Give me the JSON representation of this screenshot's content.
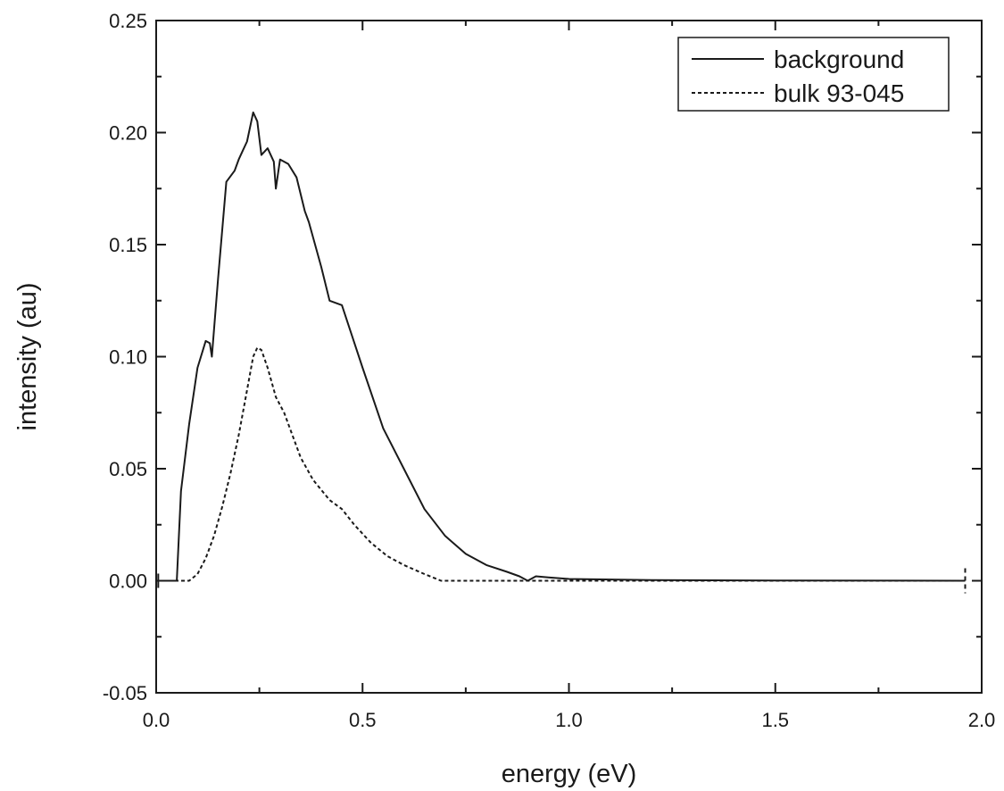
{
  "chart_data": {
    "type": "line",
    "title": "",
    "xlabel": "energy (eV)",
    "ylabel": "intensity (au)",
    "xlim": [
      0.0,
      2.0
    ],
    "ylim": [
      -0.05,
      0.25
    ],
    "x_ticks": [
      "0.0",
      "0.5",
      "1.0",
      "1.5",
      "2.0"
    ],
    "y_ticks": [
      "-0.05",
      "0.00",
      "0.05",
      "0.10",
      "0.15",
      "0.20",
      "0.25"
    ],
    "grid": false,
    "legend_position": "top-right",
    "series": [
      {
        "name": "background",
        "line_style": "solid",
        "color": "#1a1a1a",
        "points": [
          [
            0.0,
            0.0
          ],
          [
            0.05,
            0.0
          ],
          [
            0.06,
            0.04
          ],
          [
            0.08,
            0.07
          ],
          [
            0.1,
            0.095
          ],
          [
            0.12,
            0.107
          ],
          [
            0.13,
            0.106
          ],
          [
            0.135,
            0.1
          ],
          [
            0.15,
            0.135
          ],
          [
            0.17,
            0.178
          ],
          [
            0.19,
            0.183
          ],
          [
            0.2,
            0.188
          ],
          [
            0.21,
            0.192
          ],
          [
            0.22,
            0.196
          ],
          [
            0.235,
            0.209
          ],
          [
            0.245,
            0.205
          ],
          [
            0.255,
            0.19
          ],
          [
            0.27,
            0.193
          ],
          [
            0.285,
            0.187
          ],
          [
            0.29,
            0.175
          ],
          [
            0.3,
            0.188
          ],
          [
            0.32,
            0.186
          ],
          [
            0.34,
            0.18
          ],
          [
            0.36,
            0.165
          ],
          [
            0.37,
            0.16
          ],
          [
            0.4,
            0.14
          ],
          [
            0.42,
            0.125
          ],
          [
            0.45,
            0.123
          ],
          [
            0.5,
            0.095
          ],
          [
            0.55,
            0.068
          ],
          [
            0.6,
            0.05
          ],
          [
            0.65,
            0.032
          ],
          [
            0.7,
            0.02
          ],
          [
            0.75,
            0.012
          ],
          [
            0.8,
            0.007
          ],
          [
            0.85,
            0.004
          ],
          [
            0.88,
            0.002
          ],
          [
            0.9,
            0.0
          ],
          [
            0.92,
            0.002
          ],
          [
            0.95,
            0.0015
          ],
          [
            1.0,
            0.0008
          ],
          [
            1.2,
            0.0003
          ],
          [
            1.5,
            0.0001
          ],
          [
            1.96,
            0.0
          ]
        ]
      },
      {
        "name": "bulk 93-045",
        "line_style": "dashed",
        "color": "#1a1a1a",
        "points": [
          [
            0.0,
            0.0
          ],
          [
            0.08,
            0.0
          ],
          [
            0.1,
            0.003
          ],
          [
            0.12,
            0.01
          ],
          [
            0.14,
            0.02
          ],
          [
            0.16,
            0.033
          ],
          [
            0.18,
            0.048
          ],
          [
            0.2,
            0.065
          ],
          [
            0.22,
            0.085
          ],
          [
            0.235,
            0.1
          ],
          [
            0.245,
            0.104
          ],
          [
            0.255,
            0.103
          ],
          [
            0.27,
            0.095
          ],
          [
            0.29,
            0.082
          ],
          [
            0.31,
            0.075
          ],
          [
            0.33,
            0.065
          ],
          [
            0.35,
            0.055
          ],
          [
            0.38,
            0.045
          ],
          [
            0.42,
            0.036
          ],
          [
            0.45,
            0.032
          ],
          [
            0.48,
            0.025
          ],
          [
            0.52,
            0.017
          ],
          [
            0.56,
            0.011
          ],
          [
            0.6,
            0.007
          ],
          [
            0.65,
            0.003
          ],
          [
            0.69,
            0.0
          ],
          [
            0.8,
            0.0
          ],
          [
            1.0,
            0.0
          ],
          [
            1.5,
            0.0
          ],
          [
            1.96,
            0.0
          ]
        ]
      }
    ]
  }
}
